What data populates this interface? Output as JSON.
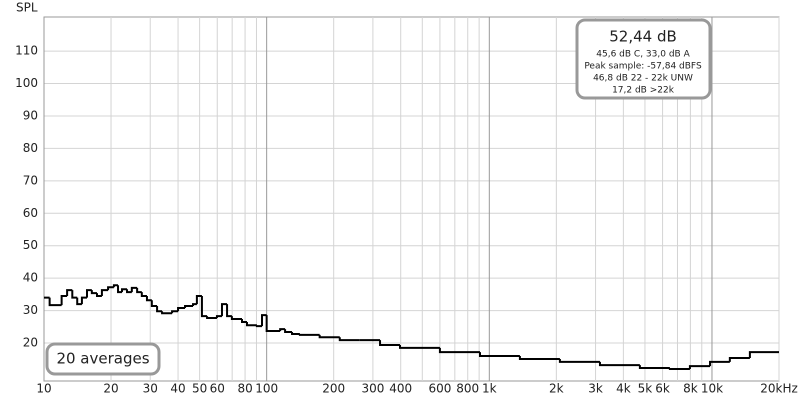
{
  "chart_data": {
    "type": "line",
    "y_label": "SPL",
    "log_x": true,
    "step": true,
    "grid": true,
    "xlim": [
      10,
      20000
    ],
    "ylim": [
      8.3,
      120.5
    ],
    "yticks": [
      20,
      30,
      40,
      50,
      60,
      70,
      80,
      90,
      100,
      110
    ],
    "xticks": [
      10,
      20,
      30,
      40,
      50,
      60,
      80,
      100,
      200,
      300,
      400,
      600,
      800,
      {
        "value": 1000,
        "label": "1k"
      },
      {
        "value": 2000,
        "label": "2k"
      },
      {
        "value": 3000,
        "label": "3k"
      },
      {
        "value": 4000,
        "label": "4k"
      },
      {
        "value": 5000,
        "label": "5k"
      },
      {
        "value": 6000,
        "label": "6k"
      },
      {
        "value": 8000,
        "label": "8k"
      },
      {
        "value": 10000,
        "label": "10k"
      },
      {
        "value": 20000,
        "label": "20kHz"
      }
    ],
    "xminorticks": [
      70,
      90,
      500,
      700,
      900,
      7000,
      9000
    ],
    "x": [
      10,
      10.6,
      12.0,
      12.7,
      13.4,
      14.1,
      14.8,
      15.6,
      16.4,
      17.3,
      18.2,
      19.4,
      20.6,
      21.5,
      22.4,
      23.6,
      24.8,
      26.2,
      27.5,
      29.0,
      30.5,
      32.2,
      33.9,
      37.6,
      40.0,
      43.0,
      46.7,
      48.6,
      51.2,
      54.0,
      59.8,
      63.0,
      66.4,
      69.8,
      77.5,
      81.6,
      90.4,
      95.3,
      100,
      115,
      121,
      130,
      141,
      173,
      213,
      262,
      323,
      397,
      600,
      908,
      1372,
      2075,
      3140,
      4745,
      6470,
      7960,
      9800,
      12030,
      14800
    ],
    "series": [
      {
        "color": "#000000",
        "values": [
          34,
          31.7,
          34.5,
          36.3,
          34,
          32,
          34,
          36.3,
          35.4,
          34.5,
          36.3,
          37.2,
          37.8,
          35.7,
          36.6,
          35.7,
          37,
          35.7,
          34.5,
          33.2,
          31.4,
          29.8,
          29.2,
          29.8,
          30.8,
          31.4,
          32,
          34.5,
          28.3,
          27.7,
          28.3,
          32,
          28.3,
          27.4,
          26.5,
          25.5,
          25.2,
          28.6,
          23.7,
          24.3,
          23.4,
          22.8,
          22.5,
          21.8,
          20.9,
          20.9,
          19.4,
          18.5,
          17.2,
          16,
          15.1,
          14.2,
          13.2,
          12.3,
          12,
          12.9,
          14.2,
          15.4,
          17.2
        ]
      }
    ],
    "info_box": {
      "title": "52,44 dB",
      "lines": [
        "45,6 dB C, 33,0 dB A",
        "Peak sample: -57,84 dBFS",
        "46,8 dB 22 - 22k UNW",
        "17,2 dB >22k"
      ]
    },
    "averages": "20 averages"
  }
}
